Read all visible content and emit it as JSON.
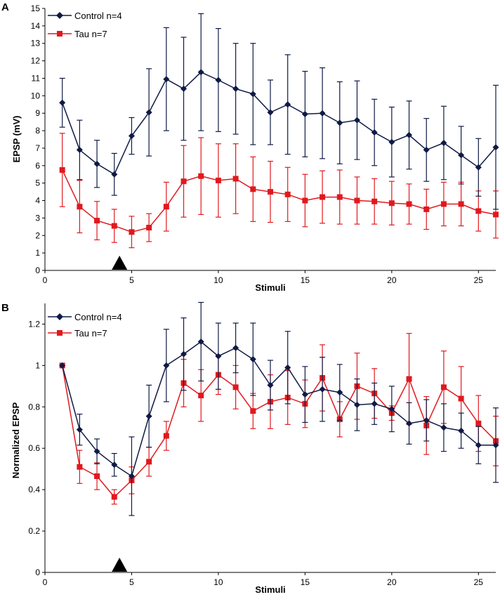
{
  "colors": {
    "control": "#0f1a45",
    "tau": "#e0191e",
    "marker": "#000000"
  },
  "chart_data": [
    {
      "panel": "A",
      "type": "line",
      "xlabel": "Stimuli",
      "ylabel": "EPSP  (mV)",
      "xlim": [
        0,
        26
      ],
      "ylim": [
        0,
        15
      ],
      "xticks": [
        "0",
        "5",
        "10",
        "15",
        "20",
        "25"
      ],
      "xtick_values": [
        0,
        5,
        10,
        15,
        20,
        25
      ],
      "yticks": [
        "0",
        "1",
        "2",
        "3",
        "4",
        "5",
        "6",
        "7",
        "8",
        "9",
        "10",
        "11",
        "12",
        "13",
        "14",
        "15"
      ],
      "ytick_values": [
        0,
        1,
        2,
        3,
        4,
        5,
        6,
        7,
        8,
        9,
        10,
        11,
        12,
        13,
        14,
        15
      ],
      "legend_position": "top-left",
      "marker_x": 4.3,
      "x": [
        1,
        2,
        3,
        4,
        5,
        6,
        7,
        8,
        9,
        10,
        11,
        12,
        13,
        14,
        15,
        16,
        17,
        18,
        19,
        20,
        21,
        22,
        23,
        24,
        25,
        26
      ],
      "series": [
        {
          "name": "Control n=4",
          "key": "control",
          "values": [
            9.6,
            6.9,
            6.1,
            5.5,
            7.7,
            9.05,
            10.95,
            10.4,
            11.35,
            10.9,
            10.4,
            10.1,
            9.05,
            9.5,
            8.95,
            9.0,
            8.45,
            8.6,
            7.9,
            7.35,
            7.75,
            6.9,
            7.3,
            6.6,
            5.9,
            7.05
          ],
          "errors": [
            1.4,
            1.7,
            1.35,
            1.2,
            1.05,
            2.5,
            2.95,
            2.95,
            3.35,
            2.95,
            2.6,
            2.9,
            1.85,
            2.85,
            2.45,
            2.6,
            2.35,
            2.25,
            1.9,
            2.0,
            1.95,
            1.8,
            2.1,
            1.65,
            1.65,
            3.55
          ]
        },
        {
          "name": "Tau n=7",
          "key": "tau",
          "values": [
            5.75,
            3.65,
            2.85,
            2.55,
            2.2,
            2.45,
            3.65,
            5.1,
            5.4,
            5.15,
            5.25,
            4.65,
            4.5,
            4.35,
            4.0,
            4.2,
            4.2,
            4.0,
            3.95,
            3.85,
            3.8,
            3.5,
            3.8,
            3.8,
            3.4,
            3.2
          ],
          "errors": [
            2.1,
            1.5,
            1.1,
            0.95,
            0.9,
            0.8,
            1.4,
            2.05,
            2.2,
            2.1,
            2.0,
            1.85,
            1.75,
            1.55,
            1.5,
            1.5,
            1.55,
            1.35,
            1.3,
            1.25,
            1.15,
            1.15,
            1.25,
            1.25,
            1.15,
            1.35
          ]
        }
      ]
    },
    {
      "panel": "B",
      "type": "line",
      "xlabel": "Stimuli",
      "ylabel": "Normalized EPSP",
      "xlim": [
        0,
        26
      ],
      "ylim": [
        0,
        1.3
      ],
      "xticks": [
        "0",
        "5",
        "10",
        "15",
        "20",
        "25"
      ],
      "xtick_values": [
        0,
        5,
        10,
        15,
        20,
        25
      ],
      "yticks": [
        "0",
        "0.2",
        "0.4",
        "0.6",
        "0.8",
        "1",
        "1.2"
      ],
      "ytick_values": [
        0,
        0.2,
        0.4,
        0.6,
        0.8,
        1.0,
        1.2
      ],
      "legend_position": "top-left",
      "marker_x": 4.3,
      "x": [
        1,
        2,
        3,
        4,
        5,
        6,
        7,
        8,
        9,
        10,
        11,
        12,
        13,
        14,
        15,
        16,
        17,
        18,
        19,
        20,
        21,
        22,
        23,
        24,
        25,
        26
      ],
      "series": [
        {
          "name": "Control n=4",
          "key": "control",
          "values": [
            1.0,
            0.69,
            0.585,
            0.52,
            0.465,
            0.755,
            1.0,
            1.055,
            1.115,
            1.045,
            1.085,
            1.03,
            0.905,
            0.99,
            0.86,
            0.885,
            0.87,
            0.81,
            0.815,
            0.79,
            0.72,
            0.735,
            0.7,
            0.685,
            0.615,
            0.615
          ],
          "errors": [
            0,
            0.075,
            0.06,
            0.055,
            0.19,
            0.15,
            0.175,
            0.175,
            0.19,
            0.16,
            0.12,
            0.175,
            0.12,
            0.175,
            0.135,
            0.155,
            0.135,
            0.125,
            0.1,
            0.11,
            0.1,
            0.1,
            0.115,
            0.085,
            0.09,
            0.18
          ]
        },
        {
          "name": "Tau n=7",
          "key": "tau",
          "values": [
            1.0,
            0.51,
            0.465,
            0.365,
            0.445,
            0.535,
            0.66,
            0.915,
            0.855,
            0.955,
            0.895,
            0.78,
            0.825,
            0.845,
            0.815,
            0.94,
            0.74,
            0.9,
            0.865,
            0.77,
            0.935,
            0.71,
            0.895,
            0.84,
            0.72,
            0.635
          ],
          "errors": [
            0,
            0.08,
            0.065,
            0.035,
            0.065,
            0.07,
            0.07,
            0.115,
            0.125,
            0.095,
            0.105,
            0.085,
            0.13,
            0.13,
            0.115,
            0.16,
            0.085,
            0.16,
            0.12,
            0.035,
            0.22,
            0.14,
            0.175,
            0.155,
            0.135,
            0.12
          ]
        }
      ]
    }
  ]
}
